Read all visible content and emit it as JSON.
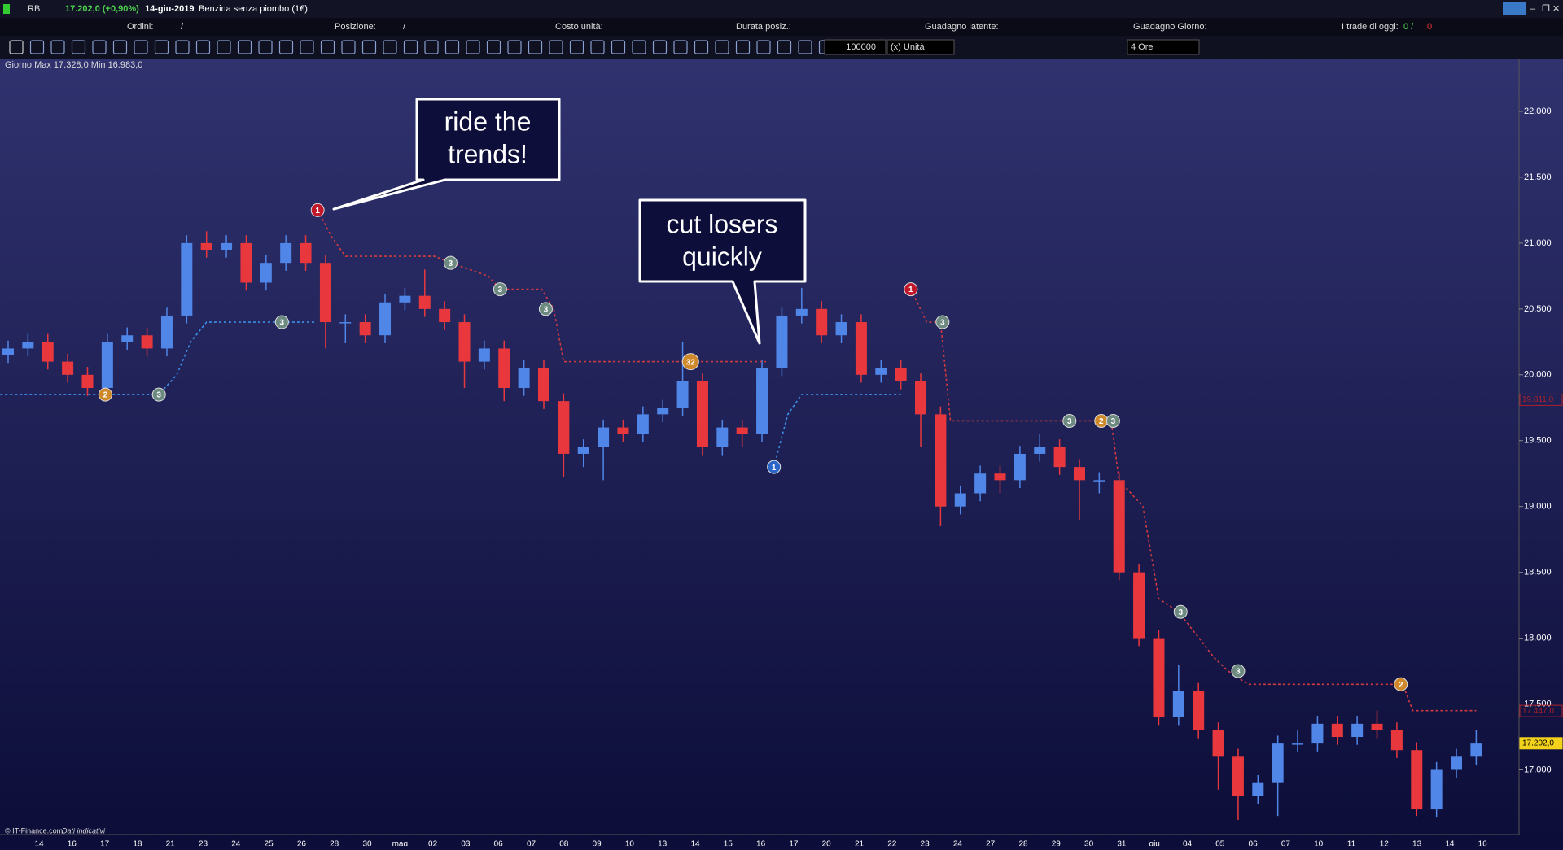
{
  "header": {
    "symbol": "RB",
    "quote": "17.202,0 (+0,90%)",
    "date": "14-giu-2019",
    "name": "Benzina senza piombo (1€)"
  },
  "info_row": {
    "orders": "Ordini:",
    "orders_sep": "/",
    "position": "Posizione:",
    "position_sep": "/",
    "unit_cost": "Costo unità:",
    "duration": "Durata posiz.:",
    "latent": "Guadagno latente:",
    "daily": "Guadagno Giorno:",
    "trades": "I trade di oggi:",
    "trades_a": "0 /",
    "trades_b": "0"
  },
  "toolbar": {
    "quantity": "100000",
    "unit": "(x) Unità",
    "timeframe": "4 Ore"
  },
  "chart_data": {
    "type": "candlestick",
    "info": "Giorno:Max 17.328,0 Min 16.983,0",
    "footer": "© IT-Finance.com",
    "footer_note": "Dati indicativi",
    "colors": {
      "up": "#4f86e8",
      "down": "#e8383d"
    },
    "ylim": [
      16.55,
      22.2
    ],
    "yticks": [
      {
        "value": 22,
        "label": "22.000"
      },
      {
        "value": 21.5,
        "label": "21.500"
      },
      {
        "value": 21,
        "label": "21.000"
      },
      {
        "value": 20.5,
        "label": "20.500"
      },
      {
        "value": 20,
        "label": "20.000"
      },
      {
        "value": 19.5,
        "label": "19.500"
      },
      {
        "value": 19,
        "label": "19.000"
      },
      {
        "value": 18.5,
        "label": "18.500"
      },
      {
        "value": 18,
        "label": "18.000"
      },
      {
        "value": 17.5,
        "label": "17.500"
      },
      {
        "value": 17,
        "label": "17.000"
      }
    ],
    "xlabels": [
      "14",
      "16",
      "17",
      "18",
      "21",
      "23",
      "24",
      "25",
      "26",
      "28",
      "30",
      "mag",
      "02",
      "03",
      "06",
      "07",
      "08",
      "09",
      "10",
      "13",
      "14",
      "15",
      "16",
      "17",
      "20",
      "21",
      "22",
      "23",
      "24",
      "27",
      "28",
      "29",
      "30",
      "31",
      "giu",
      "04",
      "05",
      "06",
      "07",
      "10",
      "11",
      "12",
      "13",
      "14",
      "16"
    ],
    "candles": [
      [
        20.15,
        20.26,
        20.09,
        20.2
      ],
      [
        20.2,
        20.31,
        20.14,
        20.25
      ],
      [
        20.25,
        20.31,
        20.04,
        20.1
      ],
      [
        20.1,
        20.16,
        19.94,
        20.0
      ],
      [
        20.0,
        20.06,
        19.84,
        19.9
      ],
      [
        19.9,
        20.31,
        19.84,
        20.25
      ],
      [
        20.25,
        20.36,
        20.19,
        20.3
      ],
      [
        20.3,
        20.36,
        20.14,
        20.2
      ],
      [
        20.2,
        20.51,
        20.14,
        20.45
      ],
      [
        20.45,
        21.06,
        20.39,
        21.0
      ],
      [
        21.0,
        21.09,
        20.89,
        20.95
      ],
      [
        20.95,
        21.06,
        20.89,
        21.0
      ],
      [
        21.0,
        21.06,
        20.64,
        20.7
      ],
      [
        20.7,
        20.91,
        20.64,
        20.85
      ],
      [
        20.85,
        21.06,
        20.79,
        21.0
      ],
      [
        21.0,
        21.06,
        20.79,
        20.85
      ],
      [
        20.85,
        20.91,
        20.2,
        20.4
      ],
      [
        20.4,
        20.46,
        20.24,
        20.4
      ],
      [
        20.4,
        20.46,
        20.24,
        20.3
      ],
      [
        20.3,
        20.61,
        20.24,
        20.55
      ],
      [
        20.55,
        20.66,
        20.49,
        20.6
      ],
      [
        20.6,
        20.8,
        20.44,
        20.5
      ],
      [
        20.5,
        20.56,
        20.34,
        20.4
      ],
      [
        20.4,
        20.46,
        19.9,
        20.1
      ],
      [
        20.1,
        20.26,
        20.04,
        20.2
      ],
      [
        20.2,
        20.26,
        19.8,
        19.9
      ],
      [
        19.9,
        20.11,
        19.84,
        20.05
      ],
      [
        20.05,
        20.11,
        19.74,
        19.8
      ],
      [
        19.8,
        19.86,
        19.22,
        19.4
      ],
      [
        19.4,
        19.51,
        19.3,
        19.45
      ],
      [
        19.45,
        19.66,
        19.2,
        19.6
      ],
      [
        19.6,
        19.66,
        19.49,
        19.55
      ],
      [
        19.55,
        19.76,
        19.49,
        19.7
      ],
      [
        19.7,
        19.81,
        19.64,
        19.75
      ],
      [
        19.75,
        20.25,
        19.69,
        19.95
      ],
      [
        19.95,
        20.01,
        19.39,
        19.45
      ],
      [
        19.45,
        19.66,
        19.39,
        19.6
      ],
      [
        19.6,
        19.66,
        19.45,
        19.55
      ],
      [
        19.55,
        20.11,
        19.49,
        20.05
      ],
      [
        20.05,
        20.51,
        19.99,
        20.45
      ],
      [
        20.45,
        20.66,
        20.39,
        20.5
      ],
      [
        20.5,
        20.56,
        20.24,
        20.3
      ],
      [
        20.3,
        20.46,
        20.24,
        20.4
      ],
      [
        20.4,
        20.46,
        19.94,
        20.0
      ],
      [
        20.0,
        20.11,
        19.94,
        20.05
      ],
      [
        20.05,
        20.11,
        19.89,
        19.95
      ],
      [
        19.95,
        20.01,
        19.45,
        19.7
      ],
      [
        19.7,
        19.76,
        18.85,
        19.0
      ],
      [
        19.0,
        19.16,
        18.94,
        19.1
      ],
      [
        19.1,
        19.31,
        19.04,
        19.25
      ],
      [
        19.25,
        19.31,
        19.1,
        19.2
      ],
      [
        19.2,
        19.46,
        19.14,
        19.4
      ],
      [
        19.4,
        19.55,
        19.34,
        19.45
      ],
      [
        19.45,
        19.51,
        19.24,
        19.3
      ],
      [
        19.3,
        19.36,
        18.9,
        19.2
      ],
      [
        19.2,
        19.26,
        19.1,
        19.2
      ],
      [
        19.2,
        19.26,
        18.44,
        18.5
      ],
      [
        18.5,
        18.56,
        17.94,
        18.0
      ],
      [
        18.0,
        18.06,
        17.34,
        17.4
      ],
      [
        17.4,
        17.8,
        17.34,
        17.6
      ],
      [
        17.6,
        17.66,
        17.24,
        17.3
      ],
      [
        17.3,
        17.36,
        16.85,
        17.1
      ],
      [
        17.1,
        17.16,
        16.62,
        16.8
      ],
      [
        16.8,
        16.96,
        16.74,
        16.9
      ],
      [
        16.9,
        17.26,
        16.65,
        17.2
      ],
      [
        17.2,
        17.3,
        17.14,
        17.2
      ],
      [
        17.2,
        17.41,
        17.14,
        17.35
      ],
      [
        17.35,
        17.41,
        17.19,
        17.25
      ],
      [
        17.25,
        17.41,
        17.19,
        17.35
      ],
      [
        17.35,
        17.45,
        17.24,
        17.3
      ],
      [
        17.3,
        17.36,
        17.09,
        17.15
      ],
      [
        17.15,
        17.21,
        16.65,
        16.7
      ],
      [
        16.7,
        17.06,
        16.64,
        17.0
      ],
      [
        17.0,
        17.16,
        16.94,
        17.1
      ],
      [
        17.1,
        17.3,
        17.04,
        17.2
      ]
    ],
    "stops": [
      {
        "color": "#d23a3f",
        "x": [
          15.6,
          16.3,
          17,
          21.5,
          22.3,
          24.2,
          24.8,
          26.9,
          27.5,
          28,
          38.2
        ],
        "values": [
          21.25,
          21.05,
          20.9,
          20.9,
          20.85,
          20.75,
          20.65,
          20.65,
          20.5,
          20.1,
          20.1
        ]
      },
      {
        "color": "#d23a3f",
        "x": [
          45.5,
          46.3,
          47,
          47.5,
          55.6,
          56,
          57.2,
          58,
          59,
          60.8,
          61.5,
          62.5,
          70.3,
          70.8,
          74
        ],
        "values": [
          20.65,
          20.4,
          20.4,
          19.65,
          19.65,
          19.2,
          19.0,
          18.3,
          18.2,
          17.85,
          17.75,
          17.65,
          17.65,
          17.45,
          17.45
        ]
      },
      {
        "color": "#3d8ee8",
        "x": [
          -0.4,
          7.6,
          8.5,
          9.2,
          10,
          15.5
        ],
        "values": [
          19.85,
          19.85,
          20.0,
          20.25,
          20.4,
          20.4
        ]
      },
      {
        "color": "#3d8ee8",
        "x": [
          38.6,
          39.3,
          40,
          45
        ],
        "values": [
          19.3,
          19.7,
          19.85,
          19.85
        ]
      }
    ],
    "markers": [
      {
        "label": "1",
        "x": 15.6,
        "value": 21.25,
        "color": "#c0182a"
      },
      {
        "label": "3",
        "x": 22.3,
        "value": 20.85,
        "color": "#6d8a80"
      },
      {
        "label": "3",
        "x": 24.8,
        "value": 20.65,
        "color": "#6d8a80"
      },
      {
        "label": "3",
        "x": 27.1,
        "value": 20.5,
        "color": "#6d8a80"
      },
      {
        "label": "32",
        "x": 34.4,
        "value": 20.1,
        "color": "#d0892a"
      },
      {
        "label": "2",
        "x": 4.9,
        "value": 19.85,
        "color": "#d0892a"
      },
      {
        "label": "3",
        "x": 7.6,
        "value": 19.85,
        "color": "#6d8a80"
      },
      {
        "label": "3",
        "x": 13.8,
        "value": 20.4,
        "color": "#6d8a80"
      },
      {
        "label": "1",
        "x": 38.6,
        "value": 19.3,
        "color": "#2a66c8"
      },
      {
        "label": "1",
        "x": 45.5,
        "value": 20.65,
        "color": "#c0182a"
      },
      {
        "label": "3",
        "x": 47.1,
        "value": 20.4,
        "color": "#6d8a80"
      },
      {
        "label": "3",
        "x": 53.5,
        "value": 19.65,
        "color": "#6d8a80"
      },
      {
        "label": "2",
        "x": 55.1,
        "value": 19.65,
        "color": "#d0892a"
      },
      {
        "label": "3",
        "x": 55.7,
        "value": 19.65,
        "color": "#6d8a80"
      },
      {
        "label": "3",
        "x": 59.1,
        "value": 18.2,
        "color": "#6d8a80"
      },
      {
        "label": "3",
        "x": 62,
        "value": 17.75,
        "color": "#6d8a80"
      },
      {
        "label": "2",
        "x": 70.2,
        "value": 17.65,
        "color": "#d0892a"
      }
    ],
    "price_labels": [
      {
        "value": 19.811,
        "label": "19.811,0",
        "color": "#b0202a"
      },
      {
        "value": 17.447,
        "label": "17.447,0",
        "color": "#b0202a"
      },
      {
        "value": 17.202,
        "label": "17.202,0",
        "color": "#f2d21b"
      }
    ],
    "callouts": [
      {
        "lines": [
          "ride the",
          "trends!"
        ]
      },
      {
        "lines": [
          "cut losers",
          "quickly"
        ]
      }
    ]
  }
}
